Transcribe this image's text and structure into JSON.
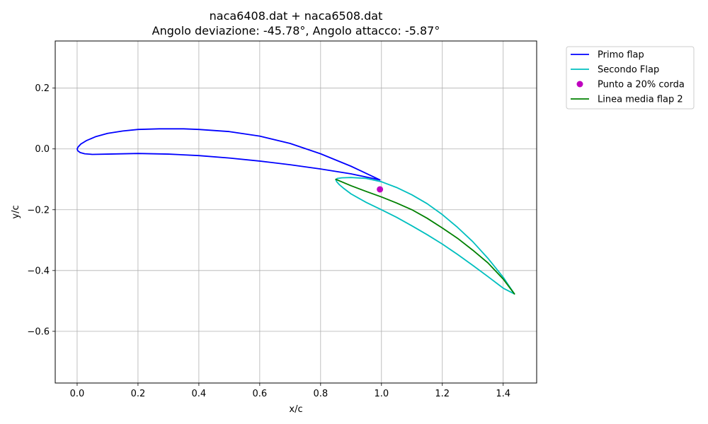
{
  "chart_data": {
    "type": "line",
    "title": "naca6408.dat + naca6508.dat",
    "subtitle": "Angolo deviazione: -45.78°, Angolo attacco: -5.87°",
    "xlabel": "x/c",
    "ylabel": "y/c",
    "xlim": [
      -0.072,
      1.51
    ],
    "ylim": [
      -0.77,
      0.355
    ],
    "grid": true,
    "legend_position": "outside-right-top",
    "x_ticks": [
      "0.0",
      "0.2",
      "0.4",
      "0.6",
      "0.8",
      "1.0",
      "1.2",
      "1.4"
    ],
    "y_ticks": [
      "0.2",
      "0.0",
      "−0.2",
      "−0.4",
      "−0.6"
    ],
    "x_tick_values": [
      0.0,
      0.2,
      0.4,
      0.6,
      0.8,
      1.0,
      1.2,
      1.4
    ],
    "y_tick_values": [
      0.2,
      0.0,
      -0.2,
      -0.4,
      -0.6
    ],
    "series": [
      {
        "name": "Primo flap",
        "color": "#0000ff",
        "kind": "line",
        "x": [
          0.995,
          0.9,
          0.8,
          0.7,
          0.6,
          0.5,
          0.4,
          0.35,
          0.3,
          0.27,
          0.2,
          0.15,
          0.1,
          0.06,
          0.03,
          0.012,
          0.003,
          0.0,
          0.002,
          0.01,
          0.025,
          0.05,
          0.1,
          0.2,
          0.3,
          0.4,
          0.5,
          0.6,
          0.7,
          0.8,
          0.9,
          0.995
        ],
        "y": [
          -0.102,
          -0.057,
          -0.016,
          0.018,
          0.042,
          0.057,
          0.064,
          0.066,
          0.066,
          0.066,
          0.064,
          0.059,
          0.051,
          0.04,
          0.027,
          0.016,
          0.006,
          0.0,
          -0.006,
          -0.012,
          -0.016,
          -0.018,
          -0.017,
          -0.015,
          -0.017,
          -0.022,
          -0.03,
          -0.04,
          -0.052,
          -0.066,
          -0.082,
          -0.102
        ]
      },
      {
        "name": "Secondo Flap",
        "color": "#00bfbf",
        "kind": "line",
        "x": [
          1.437,
          1.4,
          1.35,
          1.3,
          1.25,
          1.2,
          1.15,
          1.1,
          1.05,
          1.0,
          0.95,
          0.9,
          0.87,
          0.855,
          0.85,
          0.853,
          0.862,
          0.875,
          0.9,
          0.95,
          1.0,
          1.05,
          1.1,
          1.15,
          1.2,
          1.25,
          1.3,
          1.35,
          1.4,
          1.437
        ],
        "y": [
          -0.477,
          -0.422,
          -0.36,
          -0.305,
          -0.258,
          -0.216,
          -0.18,
          -0.151,
          -0.127,
          -0.108,
          -0.097,
          -0.094,
          -0.095,
          -0.097,
          -0.101,
          -0.108,
          -0.118,
          -0.129,
          -0.148,
          -0.176,
          -0.2,
          -0.225,
          -0.253,
          -0.282,
          -0.313,
          -0.347,
          -0.383,
          -0.42,
          -0.458,
          -0.477
        ]
      },
      {
        "name": "Punto a 20% corda",
        "color": "#bf00bf",
        "kind": "marker",
        "x": [
          0.995
        ],
        "y": [
          -0.133
        ]
      },
      {
        "name": "Linea media flap 2",
        "color": "#008000",
        "kind": "line",
        "x": [
          0.85,
          0.9,
          0.95,
          1.0,
          1.05,
          1.1,
          1.15,
          1.2,
          1.25,
          1.3,
          1.35,
          1.4,
          1.437
        ],
        "y": [
          -0.1,
          -0.121,
          -0.14,
          -0.158,
          -0.178,
          -0.2,
          -0.228,
          -0.26,
          -0.294,
          -0.333,
          -0.375,
          -0.428,
          -0.477
        ]
      }
    ]
  }
}
